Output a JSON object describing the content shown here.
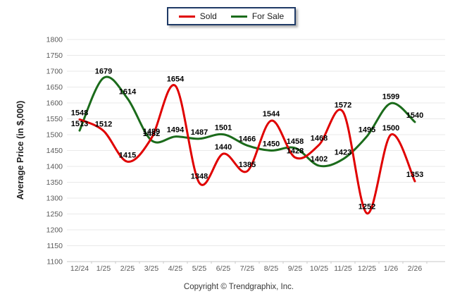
{
  "legend": {
    "items": [
      {
        "label": "Sold",
        "color": "#e00000"
      },
      {
        "label": "For Sale",
        "color": "#1b6b1b"
      }
    ]
  },
  "footer": {
    "copyright": "Copyright © Trendgraphix, Inc."
  },
  "chart_data": {
    "type": "line",
    "title": "",
    "ylabel": "Average Price (in $,000)",
    "xlabel": "",
    "categories": [
      "12/24",
      "1/25",
      "2/25",
      "3/25",
      "4/25",
      "5/25",
      "6/25",
      "7/25",
      "8/25",
      "9/25",
      "10/25",
      "11/25",
      "12/25",
      "1/26",
      "2/26"
    ],
    "series": [
      {
        "name": "Sold",
        "color": "#e00000",
        "values": [
          1548,
          1512,
          1415,
          1489,
          1654,
          1348,
          1440,
          1385,
          1544,
          1428,
          1468,
          1572,
          1252,
          1500,
          1353
        ]
      },
      {
        "name": "For Sale",
        "color": "#1b6b1b",
        "values": [
          1513,
          1679,
          1614,
          1482,
          1494,
          1487,
          1501,
          1466,
          1450,
          1458,
          1402,
          1423,
          1495,
          1599,
          1540
        ]
      }
    ],
    "ylim": [
      1100,
      1800
    ],
    "ytick_step": 50,
    "y_ticks": [
      1800,
      1750,
      1700,
      1650,
      1600,
      1550,
      1500,
      1450,
      1400,
      1350,
      1300,
      1250,
      1200,
      1150,
      1100
    ],
    "grid": true,
    "legend_position": "top-center",
    "data_labels": true
  },
  "colors": {
    "grid": "#e9e9e9",
    "axis_line": "#c9c9c9",
    "tick_text": "#595959",
    "data_label": "#000000",
    "legend_border": "#1f3a66",
    "background": "#ffffff"
  }
}
